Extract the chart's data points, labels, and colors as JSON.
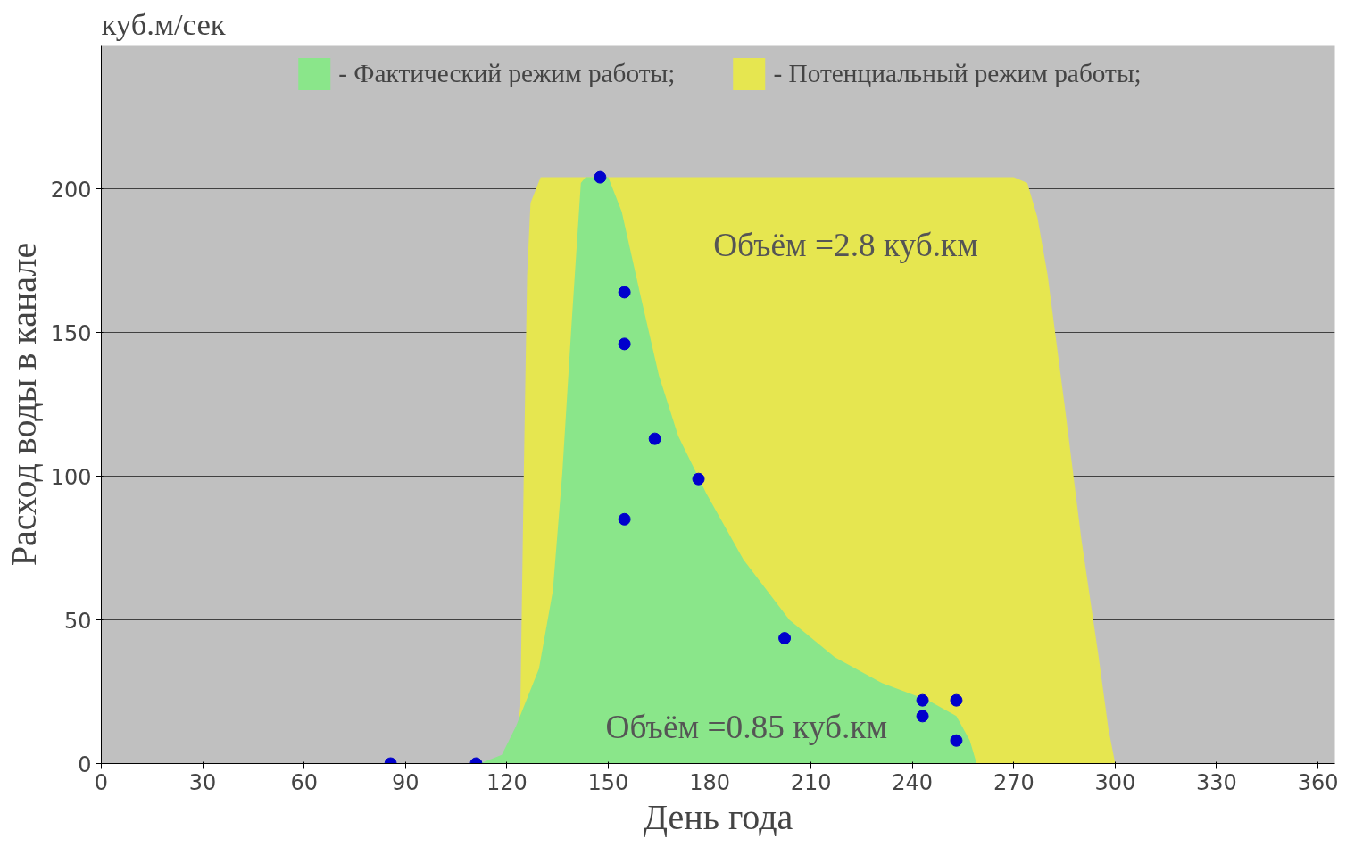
{
  "chart_data": {
    "type": "area",
    "xlabel": "День года",
    "ylabel": "Расход воды в канале",
    "xlim": [
      0,
      365
    ],
    "ylim": [
      0,
      250
    ],
    "xticks": [
      0,
      30,
      60,
      90,
      120,
      150,
      180,
      210,
      240,
      270,
      300,
      330,
      360
    ],
    "yticks": [
      0,
      50,
      100,
      150,
      200
    ],
    "grid": "y",
    "legend": "top",
    "series": [
      {
        "name": "- Потенциальный режим работы;",
        "color": "#e6e650",
        "x": [
          122,
          124,
          125,
          126,
          127,
          130,
          270,
          274,
          277,
          280,
          285,
          290,
          295,
          298,
          300
        ],
        "values": [
          0,
          20,
          100,
          170,
          195,
          204,
          204,
          202,
          190,
          170,
          125,
          78,
          38,
          12,
          0
        ]
      },
      {
        "name": "- Фактический режим работы;",
        "color": "#8ae68a",
        "x": [
          112,
          118.5,
          122.7,
          129.5,
          133.6,
          136.4,
          139.1,
          141.9,
          143.3,
          150,
          154,
          159.7,
          165,
          170.7,
          179,
          190,
          203.6,
          217,
          231,
          244.7,
          253,
          257,
          259
        ],
        "values": [
          0,
          3,
          13,
          33,
          60,
          101,
          152,
          202,
          204,
          204,
          192,
          162,
          135,
          114,
          94,
          71,
          50,
          37,
          28,
          22,
          16.5,
          8,
          0
        ]
      },
      {
        "type": "scatter",
        "color": "#0000cc",
        "marker": "circle",
        "x": [
          85.6,
          110.9,
          147.6,
          154.8,
          154.8,
          163.8,
          176.7,
          154.8,
          202.2,
          243,
          243,
          253,
          253
        ],
        "values": [
          0,
          0,
          204,
          164,
          146,
          113,
          99,
          85,
          43.6,
          22,
          16.5,
          22,
          8
        ]
      }
    ],
    "annotations": [
      "куб.м/сек",
      "Объём =2.8 куб.км",
      "Объём =0.85 куб.км"
    ]
  }
}
